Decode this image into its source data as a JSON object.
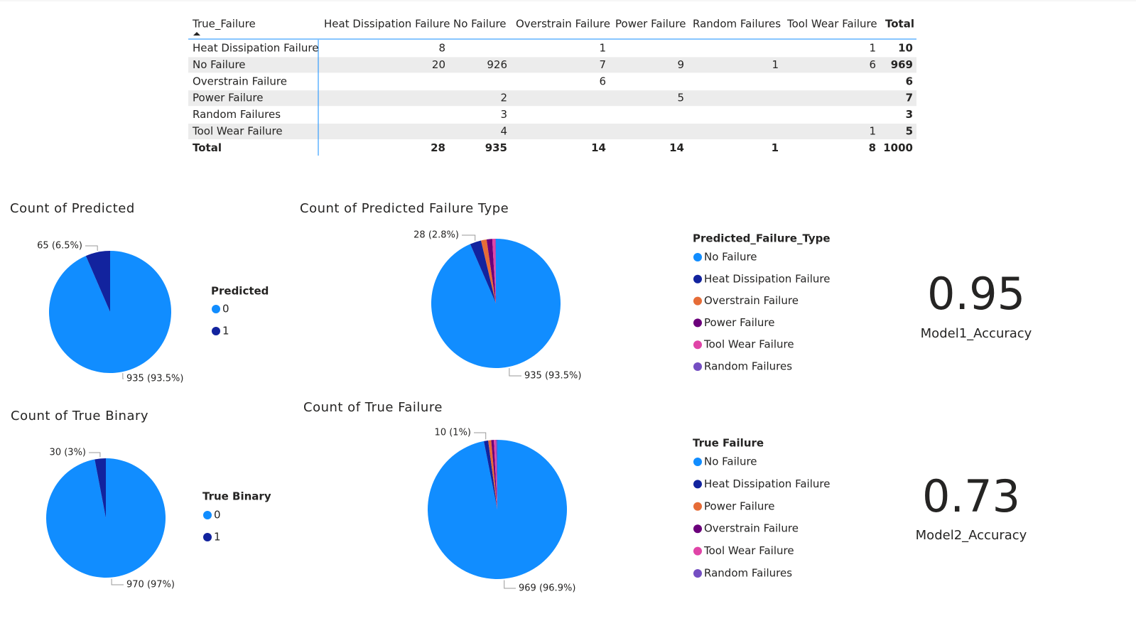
{
  "table": {
    "corner": "True_Failure",
    "columns": [
      "Heat Dissipation Failure",
      "No Failure",
      "Overstrain Failure",
      "Power Failure",
      "Random Failures",
      "Tool Wear Failure",
      "Total"
    ],
    "rows": [
      [
        "Heat Dissipation Failure",
        8,
        null,
        1,
        null,
        null,
        1,
        10
      ],
      [
        "No Failure",
        20,
        926,
        7,
        9,
        1,
        6,
        969
      ],
      [
        "Overstrain Failure",
        null,
        null,
        6,
        null,
        null,
        null,
        6
      ],
      [
        "Power Failure",
        null,
        2,
        null,
        5,
        null,
        null,
        7
      ],
      [
        "Random Failures",
        null,
        3,
        null,
        null,
        null,
        null,
        3
      ],
      [
        "Tool Wear Failure",
        null,
        4,
        null,
        null,
        null,
        1,
        5
      ]
    ],
    "total": [
      "Total",
      28,
      935,
      14,
      14,
      1,
      8,
      1000
    ]
  },
  "chart_data": [
    {
      "type": "pie",
      "title": "Count of Predicted",
      "legend_title": "Predicted",
      "categories": [
        "0",
        "1"
      ],
      "values": [
        935,
        65
      ],
      "value_labels": [
        "935 (93.5%)",
        "65 (6.5%)"
      ],
      "colors": [
        "#118DFF",
        "#12239E"
      ]
    },
    {
      "type": "pie",
      "title": "Count of Predicted Failure Type",
      "legend_title": "Predicted_Failure_Type",
      "categories": [
        "No Failure",
        "Heat Dissipation Failure",
        "Overstrain Failure",
        "Power Failure",
        "Tool Wear Failure",
        "Random Failures"
      ],
      "values": [
        935,
        28,
        14,
        14,
        8,
        1
      ],
      "value_labels": [
        "935 (93.5%)",
        "28 (2.8%)",
        null,
        null,
        null,
        null
      ],
      "colors": [
        "#118DFF",
        "#12239E",
        "#E66C37",
        "#6B007B",
        "#E044A7",
        "#744EC2"
      ]
    },
    {
      "type": "pie",
      "title": "Count of True Binary",
      "legend_title": "True Binary",
      "categories": [
        "0",
        "1"
      ],
      "values": [
        970,
        30
      ],
      "value_labels": [
        "970 (97%)",
        "30 (3%)"
      ],
      "colors": [
        "#118DFF",
        "#12239E"
      ]
    },
    {
      "type": "pie",
      "title": "Count of True Failure",
      "legend_title": "True Failure",
      "categories": [
        "No Failure",
        "Heat Dissipation Failure",
        "Power Failure",
        "Overstrain Failure",
        "Tool Wear Failure",
        "Random Failures"
      ],
      "values": [
        969,
        10,
        7,
        6,
        5,
        3
      ],
      "value_labels": [
        "969 (96.9%)",
        "10 (1%)",
        null,
        null,
        null,
        null
      ],
      "colors": [
        "#118DFF",
        "#12239E",
        "#E66C37",
        "#6B007B",
        "#E044A7",
        "#744EC2"
      ]
    }
  ],
  "cards": [
    {
      "value": 0.95,
      "label": "Model1_Accuracy"
    },
    {
      "value": 0.73,
      "label": "Model2_Accuracy"
    }
  ]
}
